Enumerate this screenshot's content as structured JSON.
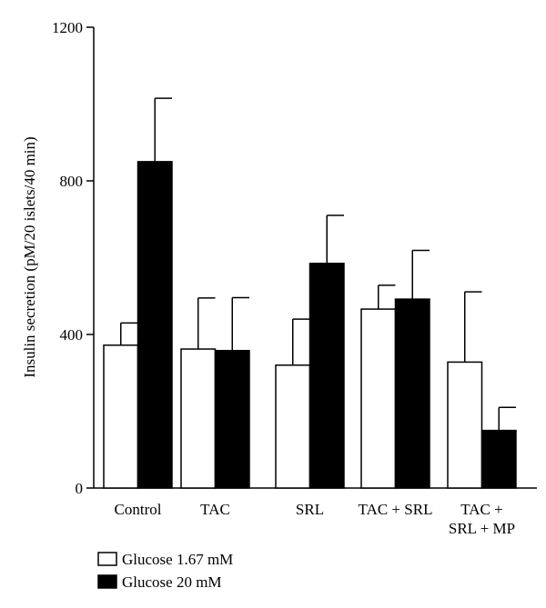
{
  "chart_data": {
    "type": "bar",
    "ylabel": "Insulin secretion (pM/20 islets/40 min)",
    "xlabel": "",
    "ylim": [
      0,
      1200
    ],
    "yticks": [
      0,
      400,
      800,
      1200
    ],
    "categories": [
      [
        "Control"
      ],
      [
        "TAC"
      ],
      [
        "SRL"
      ],
      [
        "TAC + SRL"
      ],
      [
        "TAC +",
        "SRL + MP"
      ]
    ],
    "series": [
      {
        "name": "Glucose 1.67 mM",
        "color": "#ffffff",
        "values": [
          372,
          362,
          320,
          466,
          328
        ],
        "errors": [
          58,
          133,
          120,
          62,
          183
        ]
      },
      {
        "name": "Glucose 20 mM",
        "color": "#000000",
        "values": [
          850,
          358,
          585,
          492,
          150
        ],
        "errors": [
          165,
          138,
          125,
          127,
          60
        ]
      }
    ],
    "legend": "bottom-left",
    "grid": false
  }
}
